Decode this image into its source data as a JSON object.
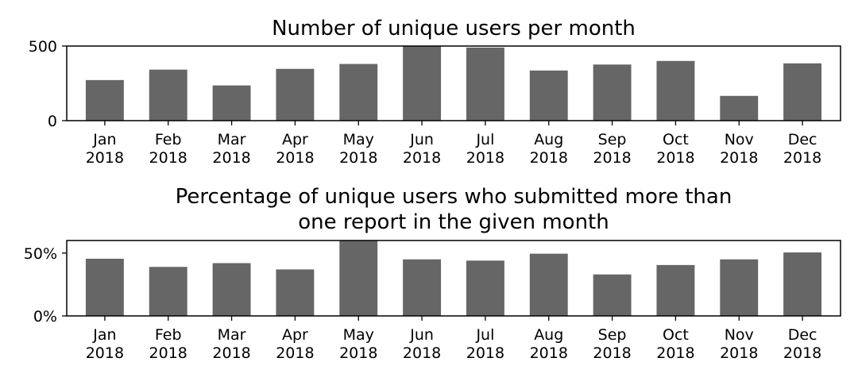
{
  "chart_data": [
    {
      "type": "bar",
      "title": "Number of unique users per month",
      "xlabel": "",
      "ylabel": "",
      "categories": [
        [
          "Jan",
          "2018"
        ],
        [
          "Feb",
          "2018"
        ],
        [
          "Mar",
          "2018"
        ],
        [
          "Apr",
          "2018"
        ],
        [
          "May",
          "2018"
        ],
        [
          "Jun",
          "2018"
        ],
        [
          "Jul",
          "2018"
        ],
        [
          "Aug",
          "2018"
        ],
        [
          "Sep",
          "2018"
        ],
        [
          "Oct",
          "2018"
        ],
        [
          "Nov",
          "2018"
        ],
        [
          "Dec",
          "2018"
        ]
      ],
      "values": [
        272,
        342,
        236,
        347,
        380,
        502,
        490,
        336,
        376,
        400,
        166,
        384
      ],
      "ylim": [
        0,
        500
      ],
      "yticks": [
        0,
        500
      ],
      "ytick_labels": [
        "0",
        "500"
      ],
      "bar_color": "#666666",
      "grid": false
    },
    {
      "type": "bar",
      "title": "Percentage of unique users who submitted more than\none report in the given month",
      "xlabel": "",
      "ylabel": "",
      "categories": [
        [
          "Jan",
          "2018"
        ],
        [
          "Feb",
          "2018"
        ],
        [
          "Mar",
          "2018"
        ],
        [
          "Apr",
          "2018"
        ],
        [
          "May",
          "2018"
        ],
        [
          "Jun",
          "2018"
        ],
        [
          "Jul",
          "2018"
        ],
        [
          "Aug",
          "2018"
        ],
        [
          "Sep",
          "2018"
        ],
        [
          "Oct",
          "2018"
        ],
        [
          "Nov",
          "2018"
        ],
        [
          "Dec",
          "2018"
        ]
      ],
      "values": [
        45.5,
        39,
        42,
        37,
        61,
        45,
        44,
        49.5,
        33,
        40.5,
        45,
        50.5
      ],
      "value_unit": "%",
      "ylim": [
        0,
        60
      ],
      "yticks": [
        0,
        50
      ],
      "ytick_labels": [
        "0%",
        "50%"
      ],
      "bar_color": "#666666",
      "grid": false
    }
  ]
}
